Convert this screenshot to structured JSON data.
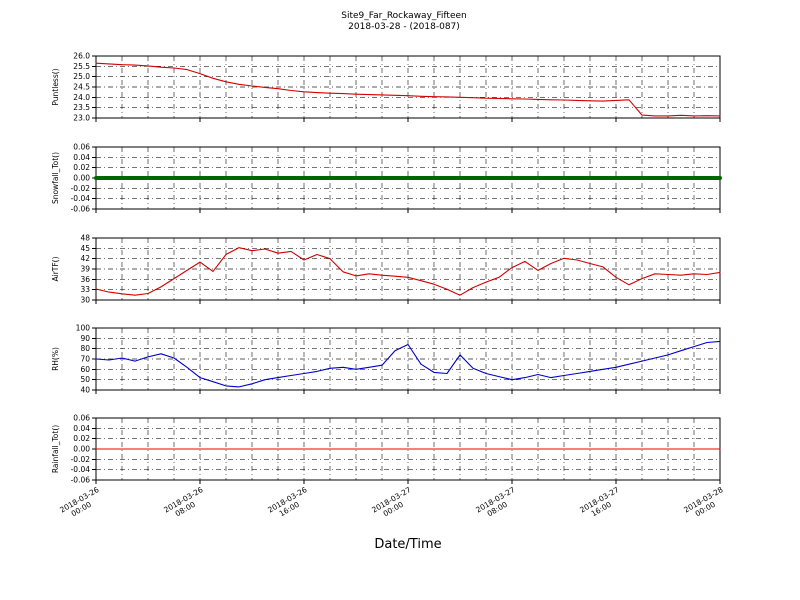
{
  "title": "Site9_Far_Rockaway_Fifteen",
  "subtitle": "2018-03-28 - (2018-087)",
  "chart_data": {
    "type": "line",
    "title": "Site9_Far_Rockaway_Fifteen",
    "subtitle": "2018-03-28 - (2018-087)",
    "grid": true,
    "x_axis": {
      "label": "Date/Time",
      "range_hours": [
        0,
        48
      ],
      "grid_interval_hours": 2,
      "tick_hours": [
        0,
        8,
        16,
        24,
        32,
        40,
        48
      ],
      "tick_labels": [
        [
          "2018-03-26",
          "00:00"
        ],
        [
          "2018-03-26",
          "08:00"
        ],
        [
          "2018-03-26",
          "16:00"
        ],
        [
          "2018-03-27",
          "00:00"
        ],
        [
          "2018-03-27",
          "08:00"
        ],
        [
          "2018-03-27",
          "16:00"
        ],
        [
          "2018-03-28",
          "00:00"
        ]
      ]
    },
    "panels": [
      {
        "name": "puntless",
        "ylabel": "Puntless()",
        "ylim": [
          23.0,
          26.0
        ],
        "ytick_labels": [
          "26.0",
          "25.5",
          "25.0",
          "24.5",
          "24.0",
          "23.5",
          "23.0"
        ],
        "color": "#d40000",
        "linewidth": 1.1,
        "values": [
          25.65,
          25.62,
          25.58,
          25.56,
          25.52,
          25.46,
          25.42,
          25.34,
          25.15,
          24.92,
          24.75,
          24.63,
          24.55,
          24.48,
          24.42,
          24.33,
          24.27,
          24.23,
          24.2,
          24.18,
          24.15,
          24.13,
          24.12,
          24.1,
          24.08,
          24.05,
          24.03,
          24.02,
          24.0,
          23.98,
          23.96,
          23.95,
          23.93,
          23.92,
          23.9,
          23.88,
          23.87,
          23.85,
          23.83,
          23.82,
          23.85,
          23.88,
          23.14,
          23.1,
          23.1,
          23.13,
          23.1,
          23.11,
          23.1
        ]
      },
      {
        "name": "snowfall-tot",
        "ylabel": "Snowfall_Tot()",
        "ylim": [
          -0.06,
          0.06
        ],
        "ytick_labels": [
          "0.06",
          "0.04",
          "0.02",
          "0.00",
          "-0.02",
          "-0.04",
          "-0.06"
        ],
        "color": "#006600",
        "linewidth": 4,
        "values": [
          0,
          0
        ]
      },
      {
        "name": "airtf",
        "ylabel": "AirTF()",
        "ylim": [
          30,
          48
        ],
        "ytick_labels": [
          "48",
          "45",
          "42",
          "39",
          "36",
          "33",
          "30"
        ],
        "color": "#d40000",
        "linewidth": 1.1,
        "values": [
          33.2,
          32.3,
          31.8,
          31.4,
          31.9,
          33.8,
          36.2,
          38.6,
          41.0,
          38.3,
          43.2,
          45.2,
          44.3,
          44.8,
          43.6,
          44.1,
          41.6,
          43.2,
          42.0,
          38.2,
          37.0,
          37.6,
          37.2,
          36.9,
          36.6,
          35.6,
          34.6,
          33.1,
          31.4,
          33.6,
          35.2,
          36.6,
          39.4,
          41.2,
          38.6,
          40.6,
          42.1,
          41.6,
          40.6,
          39.6,
          36.6,
          34.4,
          36.2,
          37.6,
          37.4,
          37.2,
          37.6,
          37.4,
          38.0
        ]
      },
      {
        "name": "rh",
        "ylabel": "RH(%)",
        "ylim": [
          40,
          100
        ],
        "ytick_labels": [
          "100",
          "90",
          "80",
          "70",
          "60",
          "50",
          "40"
        ],
        "color": "#0000cc",
        "linewidth": 1.1,
        "values": [
          70,
          69,
          71,
          68,
          72,
          75,
          71,
          62,
          52,
          48,
          44,
          43,
          46,
          50,
          52,
          54,
          56,
          58,
          61,
          62,
          60,
          62,
          64,
          78,
          84,
          65,
          57,
          56,
          74,
          61,
          56,
          53,
          50,
          52,
          55,
          52,
          54,
          56,
          58,
          60,
          62,
          65,
          68,
          71,
          74,
          78,
          82,
          86,
          87
        ]
      },
      {
        "name": "rainfall-tot",
        "ylabel": "Rainfall_Tot()",
        "ylim": [
          -0.06,
          0.06
        ],
        "ytick_labels": [
          "0.06",
          "0.04",
          "0.02",
          "0.00",
          "-0.02",
          "-0.04",
          "-0.06"
        ],
        "color": "#ee0000",
        "linewidth": 1.1,
        "values": [
          0,
          0
        ]
      }
    ]
  }
}
